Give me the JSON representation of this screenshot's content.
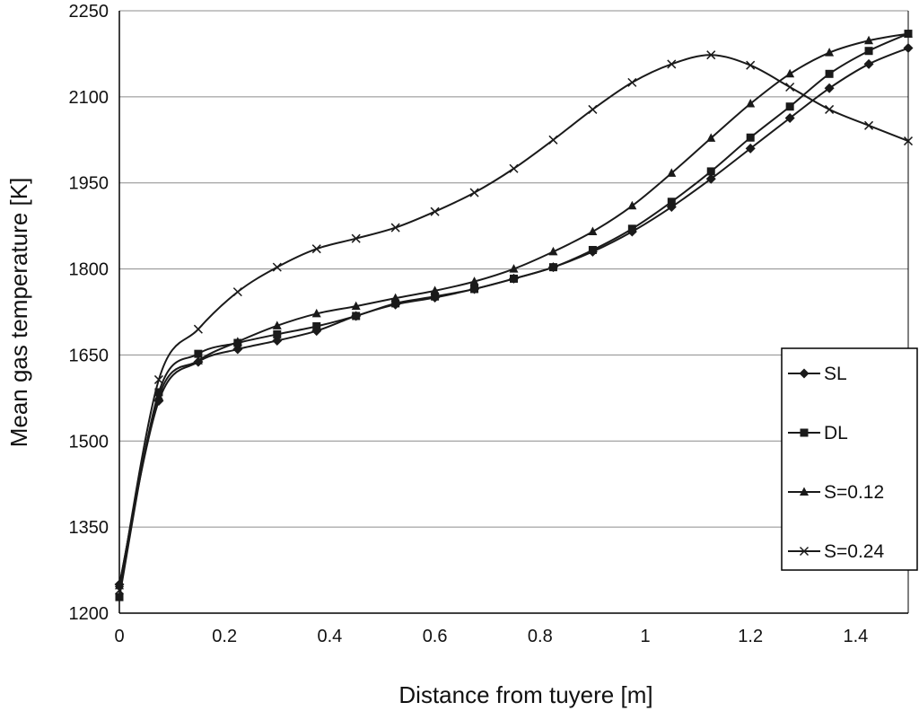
{
  "chart_data": {
    "type": "line",
    "xlabel": "Distance from tuyere [m]",
    "ylabel": "Mean gas temperature [K]",
    "xlim": [
      0,
      1.5
    ],
    "ylim": [
      1200,
      2250
    ],
    "x_ticks": [
      0,
      0.2,
      0.4,
      0.6,
      0.8,
      1,
      1.2,
      1.4
    ],
    "x_tick_labels": [
      "0",
      "0.2",
      "0.4",
      "0.6",
      "0.8",
      "1",
      "1.2",
      "1.4"
    ],
    "y_ticks": [
      1200,
      1350,
      1500,
      1650,
      1800,
      1950,
      2100,
      2250
    ],
    "y_tick_labels": [
      "1200",
      "1350",
      "1500",
      "1650",
      "1800",
      "1950",
      "2100",
      "2250"
    ],
    "grid": "horizontal",
    "legend_position": "right",
    "colors": {
      "line": "#1a1a1a",
      "grid": "#8c8c8c",
      "axis": "#000000"
    },
    "series": [
      {
        "name": "SL",
        "marker": "diamond",
        "x": [
          0,
          0.075,
          0.15,
          0.225,
          0.3,
          0.375,
          0.45,
          0.525,
          0.6,
          0.675,
          0.75,
          0.825,
          0.9,
          0.975,
          1.05,
          1.125,
          1.2,
          1.275,
          1.35,
          1.425,
          1.5
        ],
        "y": [
          1250,
          1570,
          1638,
          1660,
          1675,
          1692,
          1718,
          1738,
          1750,
          1765,
          1783,
          1803,
          1830,
          1865,
          1908,
          1957,
          2010,
          2063,
          2115,
          2157,
          2185
        ]
      },
      {
        "name": "DL",
        "marker": "square",
        "x": [
          0,
          0.075,
          0.15,
          0.225,
          0.3,
          0.375,
          0.45,
          0.525,
          0.6,
          0.675,
          0.75,
          0.825,
          0.9,
          0.975,
          1.05,
          1.125,
          1.2,
          1.275,
          1.35,
          1.425,
          1.5
        ],
        "y": [
          1228,
          1585,
          1652,
          1671,
          1686,
          1700,
          1718,
          1740,
          1752,
          1765,
          1783,
          1803,
          1833,
          1870,
          1917,
          1970,
          2029,
          2083,
          2140,
          2180,
          2210
        ]
      },
      {
        "name": "S=0.12",
        "marker": "triangle",
        "x": [
          0,
          0.075,
          0.15,
          0.225,
          0.3,
          0.375,
          0.45,
          0.525,
          0.6,
          0.675,
          0.75,
          0.825,
          0.9,
          0.975,
          1.05,
          1.125,
          1.2,
          1.275,
          1.35,
          1.425,
          1.5
        ],
        "y": [
          1248,
          1578,
          1640,
          1673,
          1701,
          1722,
          1735,
          1749,
          1762,
          1778,
          1800,
          1830,
          1865,
          1910,
          1967,
          2028,
          2088,
          2140,
          2177,
          2198,
          2210
        ]
      },
      {
        "name": "S=0.24",
        "marker": "x",
        "x": [
          0,
          0.075,
          0.15,
          0.225,
          0.3,
          0.375,
          0.45,
          0.525,
          0.6,
          0.675,
          0.75,
          0.825,
          0.9,
          0.975,
          1.05,
          1.125,
          1.2,
          1.275,
          1.35,
          1.425,
          1.5
        ],
        "y": [
          1240,
          1607,
          1695,
          1760,
          1803,
          1835,
          1853,
          1872,
          1900,
          1933,
          1975,
          2025,
          2078,
          2125,
          2157,
          2173,
          2155,
          2117,
          2078,
          2050,
          2023
        ]
      }
    ]
  }
}
